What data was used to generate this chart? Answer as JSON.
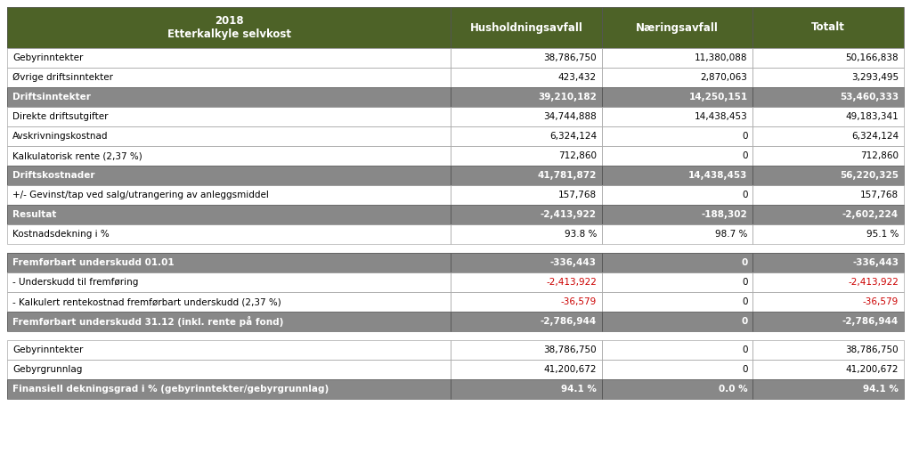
{
  "title_line1": "2018",
  "title_line2": "Etterkalkyle selvkost",
  "col_headers": [
    "Husholdningsavfall",
    "Næringsavfall",
    "Totalt"
  ],
  "section1_rows": [
    {
      "label": "Gebyrinntekter",
      "vals": [
        "38,786,750",
        "11,380,088",
        "50,166,838"
      ],
      "bold": false,
      "bg": "white"
    },
    {
      "label": "Øvrige driftsinntekter",
      "vals": [
        "423,432",
        "2,870,063",
        "3,293,495"
      ],
      "bold": false,
      "bg": "white"
    },
    {
      "label": "Driftsinntekter",
      "vals": [
        "39,210,182",
        "14,250,151",
        "53,460,333"
      ],
      "bold": true,
      "bg": "gray"
    },
    {
      "label": "Direkte driftsutgifter",
      "vals": [
        "34,744,888",
        "14,438,453",
        "49,183,341"
      ],
      "bold": false,
      "bg": "white"
    },
    {
      "label": "Avskrivningskostnad",
      "vals": [
        "6,324,124",
        "0",
        "6,324,124"
      ],
      "bold": false,
      "bg": "white"
    },
    {
      "label": "Kalkulatorisk rente (2,37 %)",
      "vals": [
        "712,860",
        "0",
        "712,860"
      ],
      "bold": false,
      "bg": "white"
    },
    {
      "label": "Driftskostnader",
      "vals": [
        "41,781,872",
        "14,438,453",
        "56,220,325"
      ],
      "bold": true,
      "bg": "gray"
    },
    {
      "label": "+/- Gevinst/tap ved salg/utrangering av anleggsmiddel",
      "vals": [
        "157,768",
        "0",
        "157,768"
      ],
      "bold": false,
      "bg": "white"
    },
    {
      "label": "Resultat",
      "vals": [
        "-2,413,922",
        "-188,302",
        "-2,602,224"
      ],
      "bold": true,
      "bg": "gray"
    },
    {
      "label": "Kostnadsdekning i %",
      "vals": [
        "93.8 %",
        "98.7 %",
        "95.1 %"
      ],
      "bold": false,
      "bg": "white"
    }
  ],
  "section2_rows": [
    {
      "label": "Fremførbart underskudd 01.01",
      "vals": [
        "-336,443",
        "0",
        "-336,443"
      ],
      "bold": true,
      "bg": "gray",
      "val_colors": [
        "white",
        "white",
        "white"
      ]
    },
    {
      "label": "- Underskudd til fremføring",
      "vals": [
        "-2,413,922",
        "0",
        "-2,413,922"
      ],
      "bold": false,
      "bg": "white",
      "val_colors": [
        "red",
        "black",
        "red"
      ]
    },
    {
      "label": "- Kalkulert rentekostnad fremførbart underskudd (2,37 %)",
      "vals": [
        "-36,579",
        "0",
        "-36,579"
      ],
      "bold": false,
      "bg": "white",
      "val_colors": [
        "red",
        "black",
        "red"
      ]
    },
    {
      "label": "Fremførbart underskudd 31.12 (inkl. rente på fond)",
      "vals": [
        "-2,786,944",
        "0",
        "-2,786,944"
      ],
      "bold": true,
      "bg": "gray",
      "val_colors": [
        "white",
        "white",
        "white"
      ]
    }
  ],
  "section3_rows": [
    {
      "label": "Gebyrinntekter",
      "vals": [
        "38,786,750",
        "0",
        "38,786,750"
      ],
      "bold": false,
      "bg": "white"
    },
    {
      "label": "Gebyrgrunnlag",
      "vals": [
        "41,200,672",
        "0",
        "41,200,672"
      ],
      "bold": false,
      "bg": "white"
    },
    {
      "label": "Finansiell dekningsgrad i % (gebyrinntekter/gebyrgrunnlag)",
      "vals": [
        "94.1 %",
        "0.0 %",
        "94.1 %"
      ],
      "bold": true,
      "bg": "gray"
    }
  ],
  "header_bg": "#4d6227",
  "gray_bg": "#888888",
  "white_bg": "#ffffff",
  "header_text_color": "#ffffff",
  "gray_text_color": "#ffffff",
  "white_text_color": "#000000",
  "red_color": "#cc0000",
  "border_color": "#aaaaaa",
  "outer_border_color": "#555555"
}
